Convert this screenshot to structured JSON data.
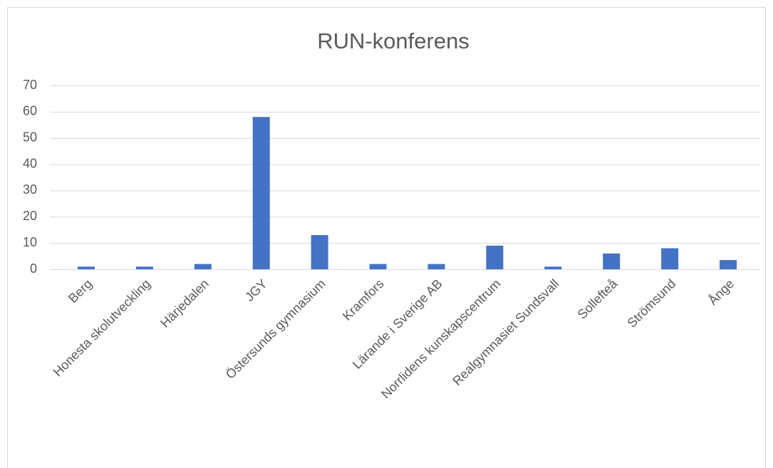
{
  "chart_data": {
    "type": "bar",
    "title": "RUN-konferens",
    "categories": [
      "Berg",
      "Honesta skolutveckling",
      "Härjedalen",
      "JGY",
      "Östersunds gymnasium",
      "Kramfors",
      "Lärande i Sverige AB",
      "Norrlidens kunskapscentrum",
      "Realgymnasiet Sundsvall",
      "Sollefteå",
      "Strömsund",
      "Ånge"
    ],
    "values": [
      1,
      1,
      2,
      58,
      13,
      2,
      2,
      9,
      1,
      6,
      8,
      3.5
    ],
    "color": "#4472c4",
    "ylim": [
      0,
      70
    ],
    "yticks": [
      0,
      10,
      20,
      30,
      40,
      50,
      60,
      70
    ],
    "grid": true
  }
}
